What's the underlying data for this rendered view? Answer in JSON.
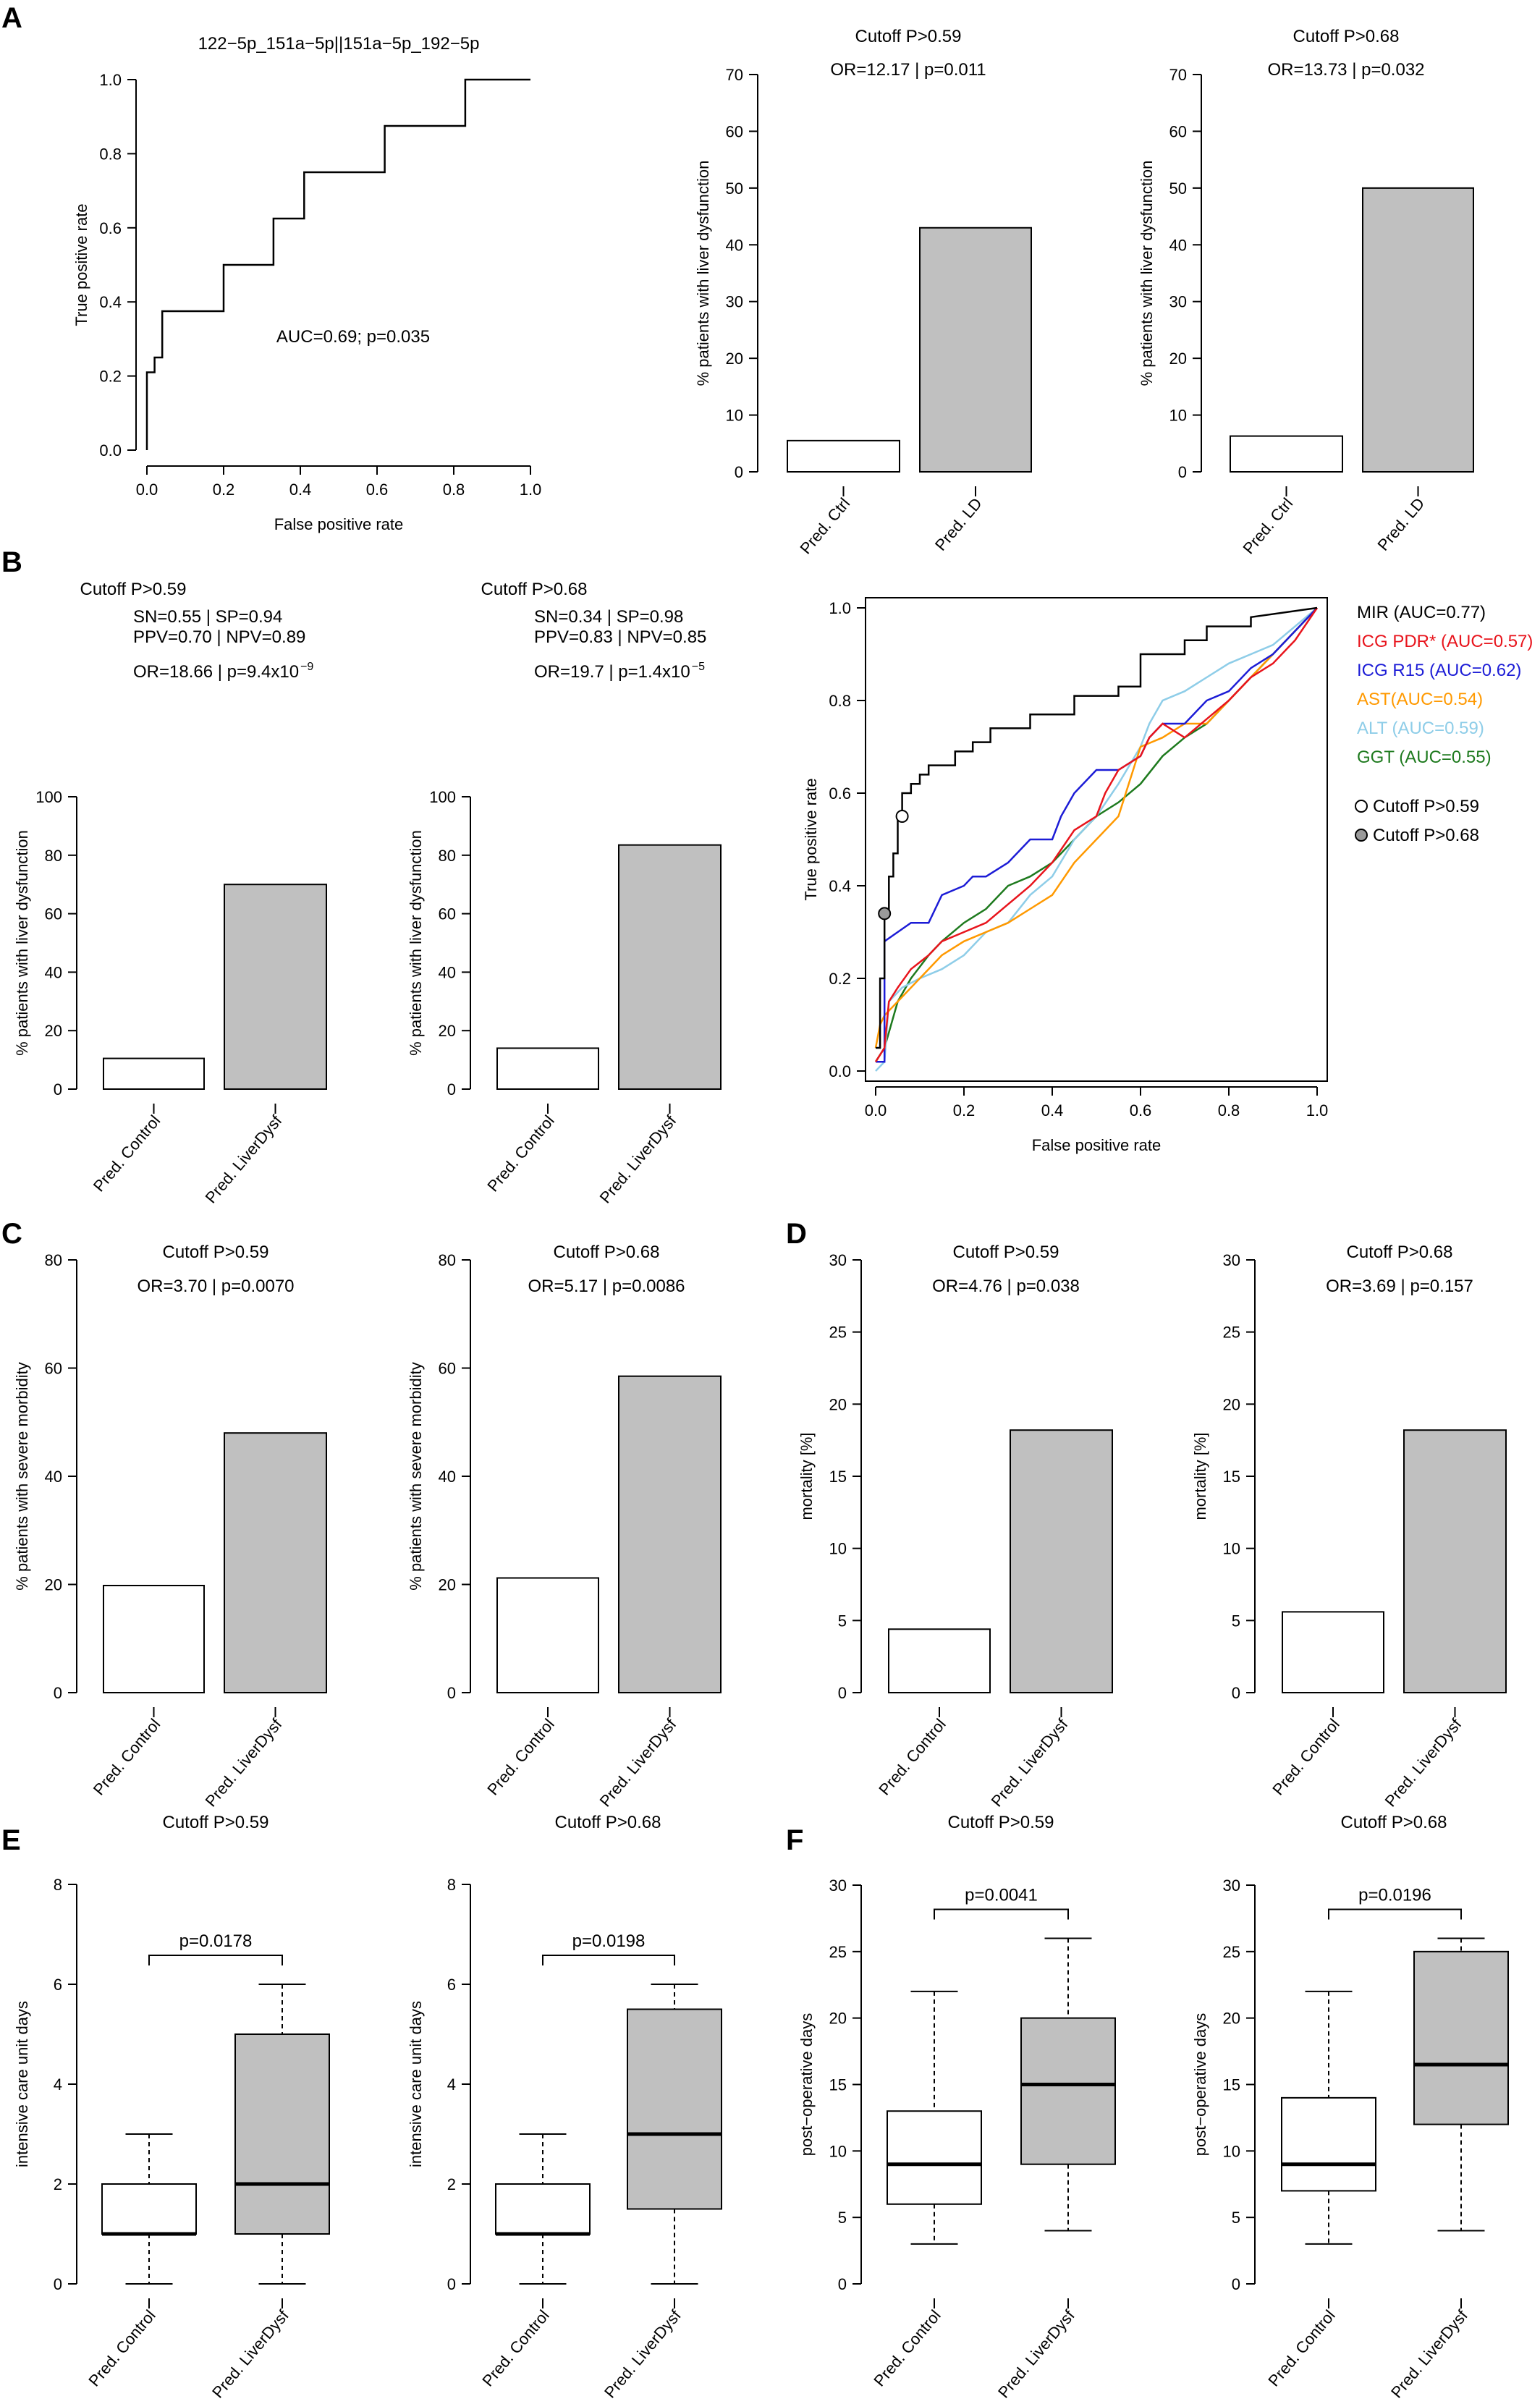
{
  "panel_letters": [
    "A",
    "B",
    "C",
    "D",
    "E",
    "F"
  ],
  "colors": {
    "pred_control_fill": "#ffffff",
    "pred_ld_fill": "#c0c0c0",
    "axis": "#000000",
    "MIR": "#000000",
    "ICG_PDR": "#e8141c",
    "ICG_R15": "#1c1cd6",
    "AST": "#ff9900",
    "ALT": "#8ecde8",
    "GGT": "#1e7a1e",
    "cutoff_059_marker": "#ffffff",
    "cutoff_068_marker": "#9a9a9a"
  },
  "chart_data": [
    {
      "id": "A1",
      "panel": "A",
      "type": "line",
      "title": "122−5p_151a−5p||151a−5p_192−5p",
      "xlabel": "False positive rate",
      "ylabel": "True positive rate",
      "xlim": [
        0,
        1
      ],
      "ylim": [
        0,
        1
      ],
      "xticks": [
        "0.0",
        "0.2",
        "0.4",
        "0.6",
        "0.8",
        "1.0"
      ],
      "yticks": [
        "0.0",
        "0.2",
        "0.4",
        "0.6",
        "0.8",
        "1.0"
      ],
      "annotation": "AUC=0.69; p=0.035",
      "series": [
        {
          "x": [
            0,
            0,
            0.02,
            0.02,
            0.04,
            0.04,
            0.2,
            0.2,
            0.33,
            0.33,
            0.41,
            0.41,
            0.62,
            0.62,
            0.83,
            0.83,
            1.0
          ],
          "y": [
            0,
            0.21,
            0.21,
            0.25,
            0.25,
            0.375,
            0.375,
            0.5,
            0.5,
            0.625,
            0.625,
            0.75,
            0.75,
            0.875,
            0.875,
            1.0,
            1.0
          ]
        }
      ]
    },
    {
      "id": "A2",
      "panel": "A",
      "type": "bar",
      "title": "Cutoff P>0.59",
      "annotation": "OR=12.17 | p=0.011",
      "ylabel": "% patients with liver dysfunction",
      "categories": [
        "Pred. Ctrl",
        "Pred. LD"
      ],
      "values": [
        5.5,
        43
      ],
      "ylim": [
        0,
        70
      ],
      "yticks": [
        "0",
        "10",
        "20",
        "30",
        "40",
        "50",
        "60",
        "70"
      ]
    },
    {
      "id": "A3",
      "panel": "A",
      "type": "bar",
      "title": "Cutoff P>0.68",
      "annotation": "OR=13.73 | p=0.032",
      "ylabel": "% patients with liver dysfunction",
      "categories": [
        "Pred. Ctrl",
        "Pred. LD"
      ],
      "values": [
        6.3,
        50
      ],
      "ylim": [
        0,
        70
      ],
      "yticks": [
        "0",
        "10",
        "20",
        "30",
        "40",
        "50",
        "60",
        "70"
      ]
    },
    {
      "id": "B1",
      "panel": "B",
      "type": "bar",
      "title": "Cutoff P>0.59",
      "stats": [
        "SN=0.55 | SP=0.94",
        "PPV=0.70 | NPV=0.89"
      ],
      "annotation": "OR=18.66 | p=9.4x10",
      "annotation_sup": "−9",
      "ylabel": "% patients with liver dysfunction",
      "categories": [
        "Pred. Control",
        "Pred. LiverDysf"
      ],
      "values": [
        10.5,
        70
      ],
      "ylim": [
        0,
        100
      ],
      "yticks": [
        "0",
        "20",
        "40",
        "60",
        "80",
        "100"
      ]
    },
    {
      "id": "B2",
      "panel": "B",
      "type": "bar",
      "title": "Cutoff P>0.68",
      "stats": [
        "SN=0.34 | SP=0.98",
        "PPV=0.83 | NPV=0.85"
      ],
      "annotation": "OR=19.7 | p=1.4x10",
      "annotation_sup": "−5",
      "ylabel": "% patients with liver dysfunction",
      "categories": [
        "Pred. Control",
        "Pred. LiverDysf"
      ],
      "values": [
        14,
        83.5
      ],
      "ylim": [
        0,
        100
      ],
      "yticks": [
        "0",
        "20",
        "40",
        "60",
        "80",
        "100"
      ]
    },
    {
      "id": "B3",
      "panel": "B",
      "type": "line",
      "xlabel": "False positive rate",
      "ylabel": "True positive rate",
      "xlim": [
        0,
        1
      ],
      "ylim": [
        0,
        1
      ],
      "xticks": [
        "0.0",
        "0.2",
        "0.4",
        "0.6",
        "0.8",
        "1.0"
      ],
      "yticks": [
        "0.0",
        "0.2",
        "0.4",
        "0.6",
        "0.8",
        "1.0"
      ],
      "legend_position": "right",
      "series": [
        {
          "name": "MIR (AUC=0.77)",
          "color_key": "MIR",
          "x": [
            0,
            0.01,
            0.01,
            0.02,
            0.02,
            0.03,
            0.03,
            0.04,
            0.04,
            0.05,
            0.05,
            0.06,
            0.06,
            0.08,
            0.08,
            0.1,
            0.1,
            0.12,
            0.12,
            0.18,
            0.18,
            0.22,
            0.22,
            0.26,
            0.26,
            0.35,
            0.35,
            0.45,
            0.45,
            0.55,
            0.55,
            0.6,
            0.6,
            0.7,
            0.7,
            0.75,
            0.75,
            0.85,
            0.85,
            1.0
          ],
          "y": [
            0.05,
            0.05,
            0.2,
            0.2,
            0.34,
            0.34,
            0.42,
            0.42,
            0.47,
            0.47,
            0.55,
            0.55,
            0.6,
            0.6,
            0.62,
            0.62,
            0.64,
            0.64,
            0.66,
            0.66,
            0.69,
            0.69,
            0.71,
            0.71,
            0.74,
            0.74,
            0.77,
            0.77,
            0.81,
            0.81,
            0.83,
            0.83,
            0.9,
            0.9,
            0.93,
            0.93,
            0.96,
            0.96,
            0.98,
            1.0
          ]
        },
        {
          "name": "ICG PDR* (AUC=0.57)",
          "color_key": "ICG_PDR",
          "x": [
            0,
            0.02,
            0.03,
            0.05,
            0.08,
            0.12,
            0.15,
            0.2,
            0.25,
            0.3,
            0.35,
            0.4,
            0.45,
            0.5,
            0.52,
            0.55,
            0.6,
            0.62,
            0.65,
            0.7,
            0.75,
            0.8,
            0.85,
            0.9,
            0.95,
            1.0
          ],
          "y": [
            0.02,
            0.05,
            0.15,
            0.18,
            0.22,
            0.25,
            0.28,
            0.3,
            0.32,
            0.36,
            0.4,
            0.45,
            0.52,
            0.55,
            0.6,
            0.65,
            0.68,
            0.72,
            0.75,
            0.72,
            0.76,
            0.8,
            0.85,
            0.88,
            0.93,
            1.0
          ]
        },
        {
          "name": "ICG R15 (AUC=0.62)",
          "color_key": "ICG_R15",
          "x": [
            0,
            0.02,
            0.02,
            0.05,
            0.08,
            0.12,
            0.15,
            0.2,
            0.22,
            0.25,
            0.3,
            0.35,
            0.4,
            0.42,
            0.45,
            0.5,
            0.55,
            0.6,
            0.62,
            0.65,
            0.7,
            0.75,
            0.8,
            0.85,
            0.9,
            0.95,
            1.0
          ],
          "y": [
            0.02,
            0.02,
            0.28,
            0.3,
            0.32,
            0.32,
            0.38,
            0.4,
            0.42,
            0.42,
            0.45,
            0.5,
            0.5,
            0.55,
            0.6,
            0.65,
            0.65,
            0.68,
            0.72,
            0.75,
            0.75,
            0.8,
            0.82,
            0.87,
            0.9,
            0.95,
            1.0
          ]
        },
        {
          "name": "AST(AUC=0.54)",
          "color_key": "AST",
          "x": [
            0,
            0.01,
            0.02,
            0.05,
            0.1,
            0.15,
            0.2,
            0.25,
            0.3,
            0.35,
            0.4,
            0.45,
            0.5,
            0.55,
            0.6,
            0.65,
            0.7,
            0.75,
            0.8,
            0.85,
            0.9,
            0.95,
            1.0
          ],
          "y": [
            0.05,
            0.1,
            0.12,
            0.15,
            0.2,
            0.25,
            0.28,
            0.3,
            0.32,
            0.35,
            0.38,
            0.45,
            0.5,
            0.55,
            0.7,
            0.72,
            0.75,
            0.75,
            0.8,
            0.85,
            0.9,
            0.95,
            1.0
          ]
        },
        {
          "name": "ALT (AUC=0.59)",
          "color_key": "ALT",
          "x": [
            0,
            0.02,
            0.03,
            0.06,
            0.1,
            0.15,
            0.2,
            0.25,
            0.3,
            0.35,
            0.4,
            0.45,
            0.5,
            0.55,
            0.6,
            0.62,
            0.65,
            0.7,
            0.75,
            0.8,
            0.85,
            0.9,
            0.95,
            1.0
          ],
          "y": [
            0.0,
            0.02,
            0.15,
            0.18,
            0.2,
            0.22,
            0.25,
            0.3,
            0.32,
            0.38,
            0.42,
            0.5,
            0.55,
            0.62,
            0.7,
            0.75,
            0.8,
            0.82,
            0.85,
            0.88,
            0.9,
            0.92,
            0.96,
            1.0
          ]
        },
        {
          "name": "GGT (AUC=0.55)",
          "color_key": "GGT",
          "x": [
            0,
            0.02,
            0.05,
            0.08,
            0.12,
            0.15,
            0.2,
            0.25,
            0.3,
            0.35,
            0.4,
            0.45,
            0.5,
            0.55,
            0.6,
            0.65,
            0.7,
            0.75,
            0.8,
            0.85,
            0.9,
            0.95,
            1.0
          ],
          "y": [
            0.02,
            0.05,
            0.15,
            0.2,
            0.25,
            0.28,
            0.32,
            0.35,
            0.4,
            0.42,
            0.45,
            0.5,
            0.55,
            0.58,
            0.62,
            0.68,
            0.72,
            0.75,
            0.8,
            0.85,
            0.9,
            0.95,
            1.0
          ]
        }
      ],
      "markers": [
        {
          "name": "Cutoff P>0.59",
          "x": 0.06,
          "y": 0.55,
          "color_key": "cutoff_059_marker"
        },
        {
          "name": "Cutoff P>0.68",
          "x": 0.02,
          "y": 0.34,
          "color_key": "cutoff_068_marker"
        }
      ]
    },
    {
      "id": "C1",
      "panel": "C",
      "type": "bar",
      "title": "Cutoff P>0.59",
      "annotation": "OR=3.70 | p=0.0070",
      "ylabel": "% patients with severe morbidity",
      "categories": [
        "Pred. Control",
        "Pred. LiverDysf"
      ],
      "values": [
        19.8,
        48
      ],
      "ylim": [
        0,
        80
      ],
      "yticks": [
        "0",
        "20",
        "40",
        "60",
        "80"
      ]
    },
    {
      "id": "C2",
      "panel": "C",
      "type": "bar",
      "title": "Cutoff P>0.68",
      "annotation": "OR=5.17 | p=0.0086",
      "ylabel": "% patients with severe morbidity",
      "categories": [
        "Pred. Control",
        "Pred. LiverDysf"
      ],
      "values": [
        21.2,
        58.5
      ],
      "ylim": [
        0,
        80
      ],
      "yticks": [
        "0",
        "20",
        "40",
        "60",
        "80"
      ]
    },
    {
      "id": "D1",
      "panel": "D",
      "type": "bar",
      "title": "Cutoff P>0.59",
      "annotation": "OR=4.76 | p=0.038",
      "ylabel": "mortality [%]",
      "categories": [
        "Pred. Control",
        "Pred. LiverDysf"
      ],
      "values": [
        4.4,
        18.2
      ],
      "ylim": [
        0,
        30
      ],
      "yticks": [
        "0",
        "5",
        "10",
        "15",
        "20",
        "25",
        "30"
      ]
    },
    {
      "id": "D2",
      "panel": "D",
      "type": "bar",
      "title": "Cutoff P>0.68",
      "annotation": "OR=3.69 | p=0.157",
      "ylabel": "mortality [%]",
      "categories": [
        "Pred. Control",
        "Pred. LiverDysf"
      ],
      "values": [
        5.6,
        18.2
      ],
      "ylim": [
        0,
        30
      ],
      "yticks": [
        "0",
        "5",
        "10",
        "15",
        "20",
        "25",
        "30"
      ]
    },
    {
      "id": "E1",
      "panel": "E",
      "type": "box",
      "title": "Cutoff P>0.59",
      "annotation": "p=0.0178",
      "ylabel": "intensive care unit days",
      "categories": [
        "Pred. Control",
        "Pred. LiverDysf"
      ],
      "boxes": [
        {
          "min": 0,
          "q1": 1,
          "median": 1,
          "q3": 2,
          "max": 3
        },
        {
          "min": 0,
          "q1": 1,
          "median": 2,
          "q3": 5,
          "max": 6
        }
      ],
      "ylim": [
        0,
        8
      ],
      "yticks": [
        "0",
        "2",
        "4",
        "6",
        "8"
      ]
    },
    {
      "id": "E2",
      "panel": "E",
      "type": "box",
      "title": "Cutoff P>0.68",
      "annotation": "p=0.0198",
      "ylabel": "intensive care unit days",
      "categories": [
        "Pred. Control",
        "Pred. LiverDysf"
      ],
      "boxes": [
        {
          "min": 0,
          "q1": 1,
          "median": 1,
          "q3": 2,
          "max": 3
        },
        {
          "min": 0,
          "q1": 1.5,
          "median": 3,
          "q3": 5.5,
          "max": 6
        }
      ],
      "ylim": [
        0,
        8
      ],
      "yticks": [
        "0",
        "2",
        "4",
        "6",
        "8"
      ]
    },
    {
      "id": "F1",
      "panel": "F",
      "type": "box",
      "title": "Cutoff P>0.59",
      "annotation": "p=0.0041",
      "ylabel": "post−operative days",
      "categories": [
        "Pred. Control",
        "Pred. LiverDysf"
      ],
      "boxes": [
        {
          "min": 3,
          "q1": 6,
          "median": 9,
          "q3": 13,
          "max": 22
        },
        {
          "min": 4,
          "q1": 9,
          "median": 15,
          "q3": 20,
          "max": 26
        }
      ],
      "ylim": [
        0,
        30
      ],
      "yticks": [
        "0",
        "5",
        "10",
        "15",
        "20",
        "25",
        "30"
      ]
    },
    {
      "id": "F2",
      "panel": "F",
      "type": "box",
      "title": "Cutoff P>0.68",
      "annotation": "p=0.0196",
      "ylabel": "post−operative days",
      "categories": [
        "Pred. Control",
        "Pred. LiverDysf"
      ],
      "boxes": [
        {
          "min": 3,
          "q1": 7,
          "median": 9,
          "q3": 14,
          "max": 22
        },
        {
          "min": 4,
          "q1": 12,
          "median": 16.5,
          "q3": 25,
          "max": 26
        }
      ],
      "ylim": [
        0,
        30
      ],
      "yticks": [
        "0",
        "5",
        "10",
        "15",
        "20",
        "25",
        "30"
      ]
    }
  ]
}
